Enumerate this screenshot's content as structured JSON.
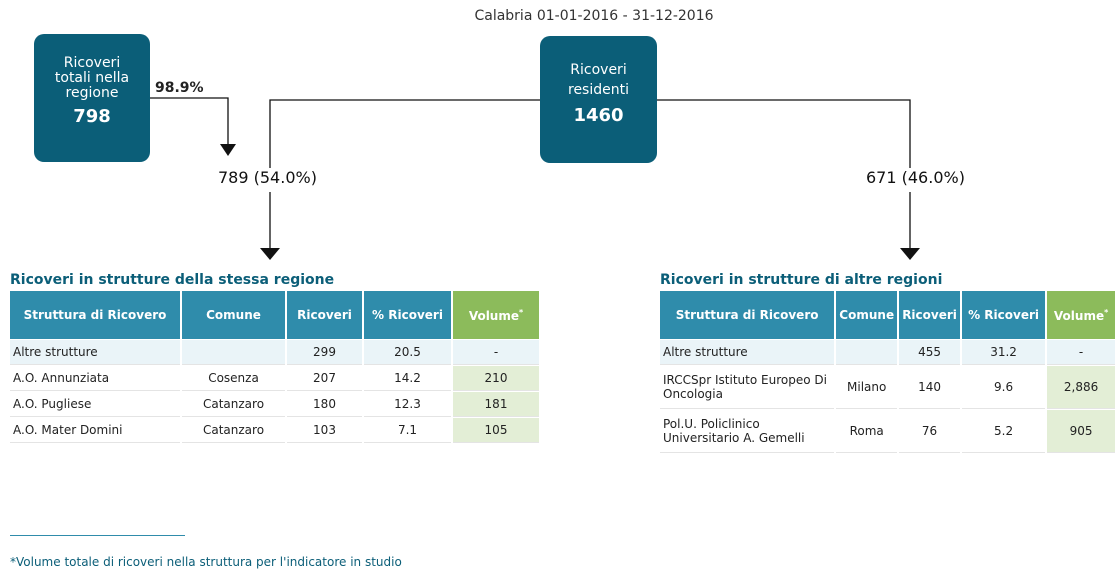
{
  "header": {
    "title": "Calabria 01-01-2016 - 31-12-2016"
  },
  "boxes": {
    "total": {
      "label": "Ricoveri totali nella regione",
      "value": 798
    },
    "residents": {
      "label": "Ricoveri residenti",
      "value": 1460
    }
  },
  "flows": {
    "share_in_region": "98.9%",
    "same_region": "789 (54.0%)",
    "other_regions": "671 (46.0%)"
  },
  "tables": [
    {
      "title": "Ricoveri in strutture della stessa regione",
      "columns": [
        "Struttura di Ricovero",
        "Comune",
        "Ricoveri",
        "% Ricoveri",
        "Volume"
      ],
      "column_note": "*",
      "rows": [
        [
          "Altre strutture",
          "",
          299,
          20.5,
          "-"
        ],
        [
          "A.O. Annunziata",
          "Cosenza",
          207,
          14.2,
          210
        ],
        [
          "A.O. Pugliese",
          "Catanzaro",
          180,
          12.3,
          181
        ],
        [
          "A.O. Mater Domini",
          "Catanzaro",
          103,
          7.1,
          105
        ]
      ]
    },
    {
      "title": "Ricoveri in strutture di altre regioni",
      "columns": [
        "Struttura di Ricovero",
        "Comune",
        "Ricoveri",
        "% Ricoveri",
        "Volume"
      ],
      "column_note": "*",
      "rows": [
        [
          "Altre strutture",
          "",
          455,
          31.2,
          "-"
        ],
        [
          "IRCCSpr Istituto Europeo Di Oncologia",
          "Milano",
          140,
          9.6,
          "2,886"
        ],
        [
          "Pol.U. Policlinico Universitario A. Gemelli",
          "Roma",
          76,
          5.2,
          905
        ]
      ]
    }
  ],
  "footnote": "*Volume totale di ricoveri nella struttura per l'indicatore in studio"
}
